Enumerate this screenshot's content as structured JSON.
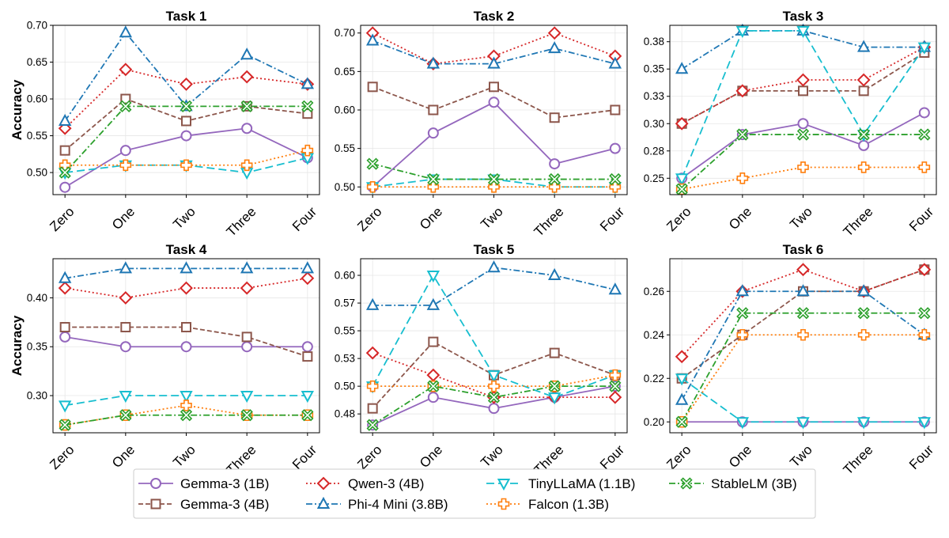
{
  "chart_data": {
    "type": "line",
    "categories": [
      "Zero",
      "One",
      "Two",
      "Three",
      "Four"
    ],
    "ylabel": "Accuracy",
    "series_meta": [
      {
        "name": "Gemma-3 (1B)",
        "color": "#9467bd",
        "marker": "circle",
        "dash": "solid"
      },
      {
        "name": "Gemma-3 (4B)",
        "color": "#8c564b",
        "marker": "square",
        "dash": "dashed"
      },
      {
        "name": "Qwen-3 (4B)",
        "color": "#d62728",
        "marker": "diamond",
        "dash": "dotted"
      },
      {
        "name": "Phi-4 Mini (3.8B)",
        "color": "#1f77b4",
        "marker": "triangle-up",
        "dash": "dashdot"
      },
      {
        "name": "TinyLLaMA (1.1B)",
        "color": "#17becf",
        "marker": "triangle-down",
        "dash": "longdash"
      },
      {
        "name": "Falcon (1.3B)",
        "color": "#ff7f0e",
        "marker": "plus",
        "dash": "dotted"
      },
      {
        "name": "StableLM (3B)",
        "color": "#2ca02c",
        "marker": "x",
        "dash": "dashdot"
      }
    ],
    "panels": [
      {
        "title": "Task 1",
        "show_ylabel": true,
        "ylim": [
          0.47,
          0.7
        ],
        "yticks": [
          0.5,
          0.55,
          0.6,
          0.65,
          0.7
        ],
        "ytick_labels": [
          "0.50",
          "0.55",
          "0.60",
          "0.65",
          "0.70"
        ],
        "series": [
          {
            "name": "Gemma-3 (1B)",
            "values": [
              0.48,
              0.53,
              0.55,
              0.56,
              0.52
            ]
          },
          {
            "name": "Gemma-3 (4B)",
            "values": [
              0.53,
              0.6,
              0.57,
              0.59,
              0.58
            ]
          },
          {
            "name": "Qwen-3 (4B)",
            "values": [
              0.56,
              0.64,
              0.62,
              0.63,
              0.62
            ]
          },
          {
            "name": "Phi-4 Mini (3.8B)",
            "values": [
              0.57,
              0.69,
              0.59,
              0.66,
              0.62
            ]
          },
          {
            "name": "TinyLLaMA (1.1B)",
            "values": [
              0.5,
              0.51,
              0.51,
              0.5,
              0.52
            ]
          },
          {
            "name": "Falcon (1.3B)",
            "values": [
              0.51,
              0.51,
              0.51,
              0.51,
              0.53
            ]
          },
          {
            "name": "StableLM (3B)",
            "values": [
              0.5,
              0.59,
              0.59,
              0.59,
              0.59
            ]
          }
        ]
      },
      {
        "title": "Task 2",
        "show_ylabel": false,
        "ylim": [
          0.49,
          0.71
        ],
        "yticks": [
          0.5,
          0.55,
          0.6,
          0.65,
          0.7
        ],
        "ytick_labels": [
          "0.50",
          "0.55",
          "0.60",
          "0.65",
          "0.70"
        ],
        "series": [
          {
            "name": "Gemma-3 (1B)",
            "values": [
              0.5,
              0.57,
              0.61,
              0.53,
              0.55
            ]
          },
          {
            "name": "Gemma-3 (4B)",
            "values": [
              0.63,
              0.6,
              0.63,
              0.59,
              0.6
            ]
          },
          {
            "name": "Qwen-3 (4B)",
            "values": [
              0.7,
              0.66,
              0.67,
              0.7,
              0.67
            ]
          },
          {
            "name": "Phi-4 Mini (3.8B)",
            "values": [
              0.69,
              0.66,
              0.66,
              0.68,
              0.66
            ]
          },
          {
            "name": "TinyLLaMA (1.1B)",
            "values": [
              0.5,
              0.51,
              0.51,
              0.5,
              0.5
            ]
          },
          {
            "name": "Falcon (1.3B)",
            "values": [
              0.5,
              0.5,
              0.5,
              0.5,
              0.5
            ]
          },
          {
            "name": "StableLM (3B)",
            "values": [
              0.53,
              0.51,
              0.51,
              0.51,
              0.51
            ]
          }
        ]
      },
      {
        "title": "Task 3",
        "show_ylabel": false,
        "ylim": [
          0.235,
          0.39
        ],
        "yticks": [
          0.25,
          0.275,
          0.3,
          0.325,
          0.35,
          0.375
        ],
        "ytick_labels": [
          "0.25",
          "0.28",
          "0.30",
          "0.33",
          "0.35",
          "0.38"
        ],
        "series": [
          {
            "name": "Gemma-3 (1B)",
            "values": [
              0.25,
              0.29,
              0.3,
              0.28,
              0.31
            ]
          },
          {
            "name": "Gemma-3 (4B)",
            "values": [
              0.3,
              0.33,
              0.33,
              0.33,
              0.365
            ]
          },
          {
            "name": "Qwen-3 (4B)",
            "values": [
              0.3,
              0.33,
              0.34,
              0.34,
              0.37
            ]
          },
          {
            "name": "Phi-4 Mini (3.8B)",
            "values": [
              0.35,
              0.385,
              0.385,
              0.37,
              0.37
            ]
          },
          {
            "name": "TinyLLaMA (1.1B)",
            "values": [
              0.25,
              0.385,
              0.385,
              0.29,
              0.37
            ]
          },
          {
            "name": "Falcon (1.3B)",
            "values": [
              0.24,
              0.25,
              0.26,
              0.26,
              0.26
            ]
          },
          {
            "name": "StableLM (3B)",
            "values": [
              0.24,
              0.29,
              0.29,
              0.29,
              0.29
            ]
          }
        ]
      },
      {
        "title": "Task 4",
        "show_ylabel": true,
        "ylim": [
          0.262,
          0.44
        ],
        "yticks": [
          0.3,
          0.35,
          0.4
        ],
        "ytick_labels": [
          "0.30",
          "0.35",
          "0.40"
        ],
        "series": [
          {
            "name": "Gemma-3 (1B)",
            "values": [
              0.36,
              0.35,
              0.35,
              0.35,
              0.35
            ]
          },
          {
            "name": "Gemma-3 (4B)",
            "values": [
              0.37,
              0.37,
              0.37,
              0.36,
              0.34
            ]
          },
          {
            "name": "Qwen-3 (4B)",
            "values": [
              0.41,
              0.4,
              0.41,
              0.41,
              0.42
            ]
          },
          {
            "name": "Phi-4 Mini (3.8B)",
            "values": [
              0.42,
              0.43,
              0.43,
              0.43,
              0.43
            ]
          },
          {
            "name": "TinyLLaMA (1.1B)",
            "values": [
              0.29,
              0.3,
              0.3,
              0.3,
              0.3
            ]
          },
          {
            "name": "Falcon (1.3B)",
            "values": [
              0.27,
              0.28,
              0.29,
              0.28,
              0.28
            ]
          },
          {
            "name": "StableLM (3B)",
            "values": [
              0.27,
              0.28,
              0.28,
              0.28,
              0.28
            ]
          }
        ]
      },
      {
        "title": "Task 5",
        "show_ylabel": false,
        "ylim": [
          0.458,
          0.615
        ],
        "yticks": [
          0.475,
          0.5,
          0.525,
          0.55,
          0.575,
          0.6
        ],
        "ytick_labels": [
          "0.48",
          "0.50",
          "0.53",
          "0.55",
          "0.57",
          "0.60"
        ],
        "series": [
          {
            "name": "Gemma-3 (1B)",
            "values": [
              0.465,
              0.49,
              0.48,
              0.49,
              0.5
            ]
          },
          {
            "name": "Gemma-3 (4B)",
            "values": [
              0.48,
              0.54,
              0.51,
              0.53,
              0.51
            ]
          },
          {
            "name": "Qwen-3 (4B)",
            "values": [
              0.53,
              0.51,
              0.49,
              0.49,
              0.49
            ]
          },
          {
            "name": "Phi-4 Mini (3.8B)",
            "values": [
              0.573,
              0.573,
              0.607,
              0.6,
              0.587
            ]
          },
          {
            "name": "TinyLLaMA (1.1B)",
            "values": [
              0.5,
              0.6,
              0.51,
              0.49,
              0.51
            ]
          },
          {
            "name": "Falcon (1.3B)",
            "values": [
              0.5,
              0.5,
              0.5,
              0.5,
              0.51
            ]
          },
          {
            "name": "StableLM (3B)",
            "values": [
              0.465,
              0.5,
              0.49,
              0.5,
              0.5
            ]
          }
        ]
      },
      {
        "title": "Task 6",
        "show_ylabel": false,
        "ylim": [
          0.195,
          0.275
        ],
        "yticks": [
          0.2,
          0.22,
          0.24,
          0.26
        ],
        "ytick_labels": [
          "0.20",
          "0.22",
          "0.24",
          "0.26"
        ],
        "series": [
          {
            "name": "Gemma-3 (1B)",
            "values": [
              0.2,
              0.2,
              0.2,
              0.2,
              0.2
            ]
          },
          {
            "name": "Gemma-3 (4B)",
            "values": [
              0.22,
              0.24,
              0.26,
              0.26,
              0.27
            ]
          },
          {
            "name": "Qwen-3 (4B)",
            "values": [
              0.23,
              0.26,
              0.27,
              0.26,
              0.27
            ]
          },
          {
            "name": "Phi-4 Mini (3.8B)",
            "values": [
              0.21,
              0.26,
              0.26,
              0.26,
              0.24
            ]
          },
          {
            "name": "TinyLLaMA (1.1B)",
            "values": [
              0.22,
              0.2,
              0.2,
              0.2,
              0.2
            ]
          },
          {
            "name": "Falcon (1.3B)",
            "values": [
              0.2,
              0.24,
              0.24,
              0.24,
              0.24
            ]
          },
          {
            "name": "StableLM (3B)",
            "values": [
              0.2,
              0.25,
              0.25,
              0.25,
              0.25
            ]
          }
        ]
      }
    ],
    "legend": {
      "placement": "bottom-center",
      "entries": [
        "Gemma-3 (1B)",
        "Gemma-3 (4B)",
        "Qwen-3 (4B)",
        "Phi-4 Mini (3.8B)",
        "TinyLLaMA (1.1B)",
        "Falcon (1.3B)",
        "StableLM (3B)"
      ]
    },
    "grid": true
  }
}
